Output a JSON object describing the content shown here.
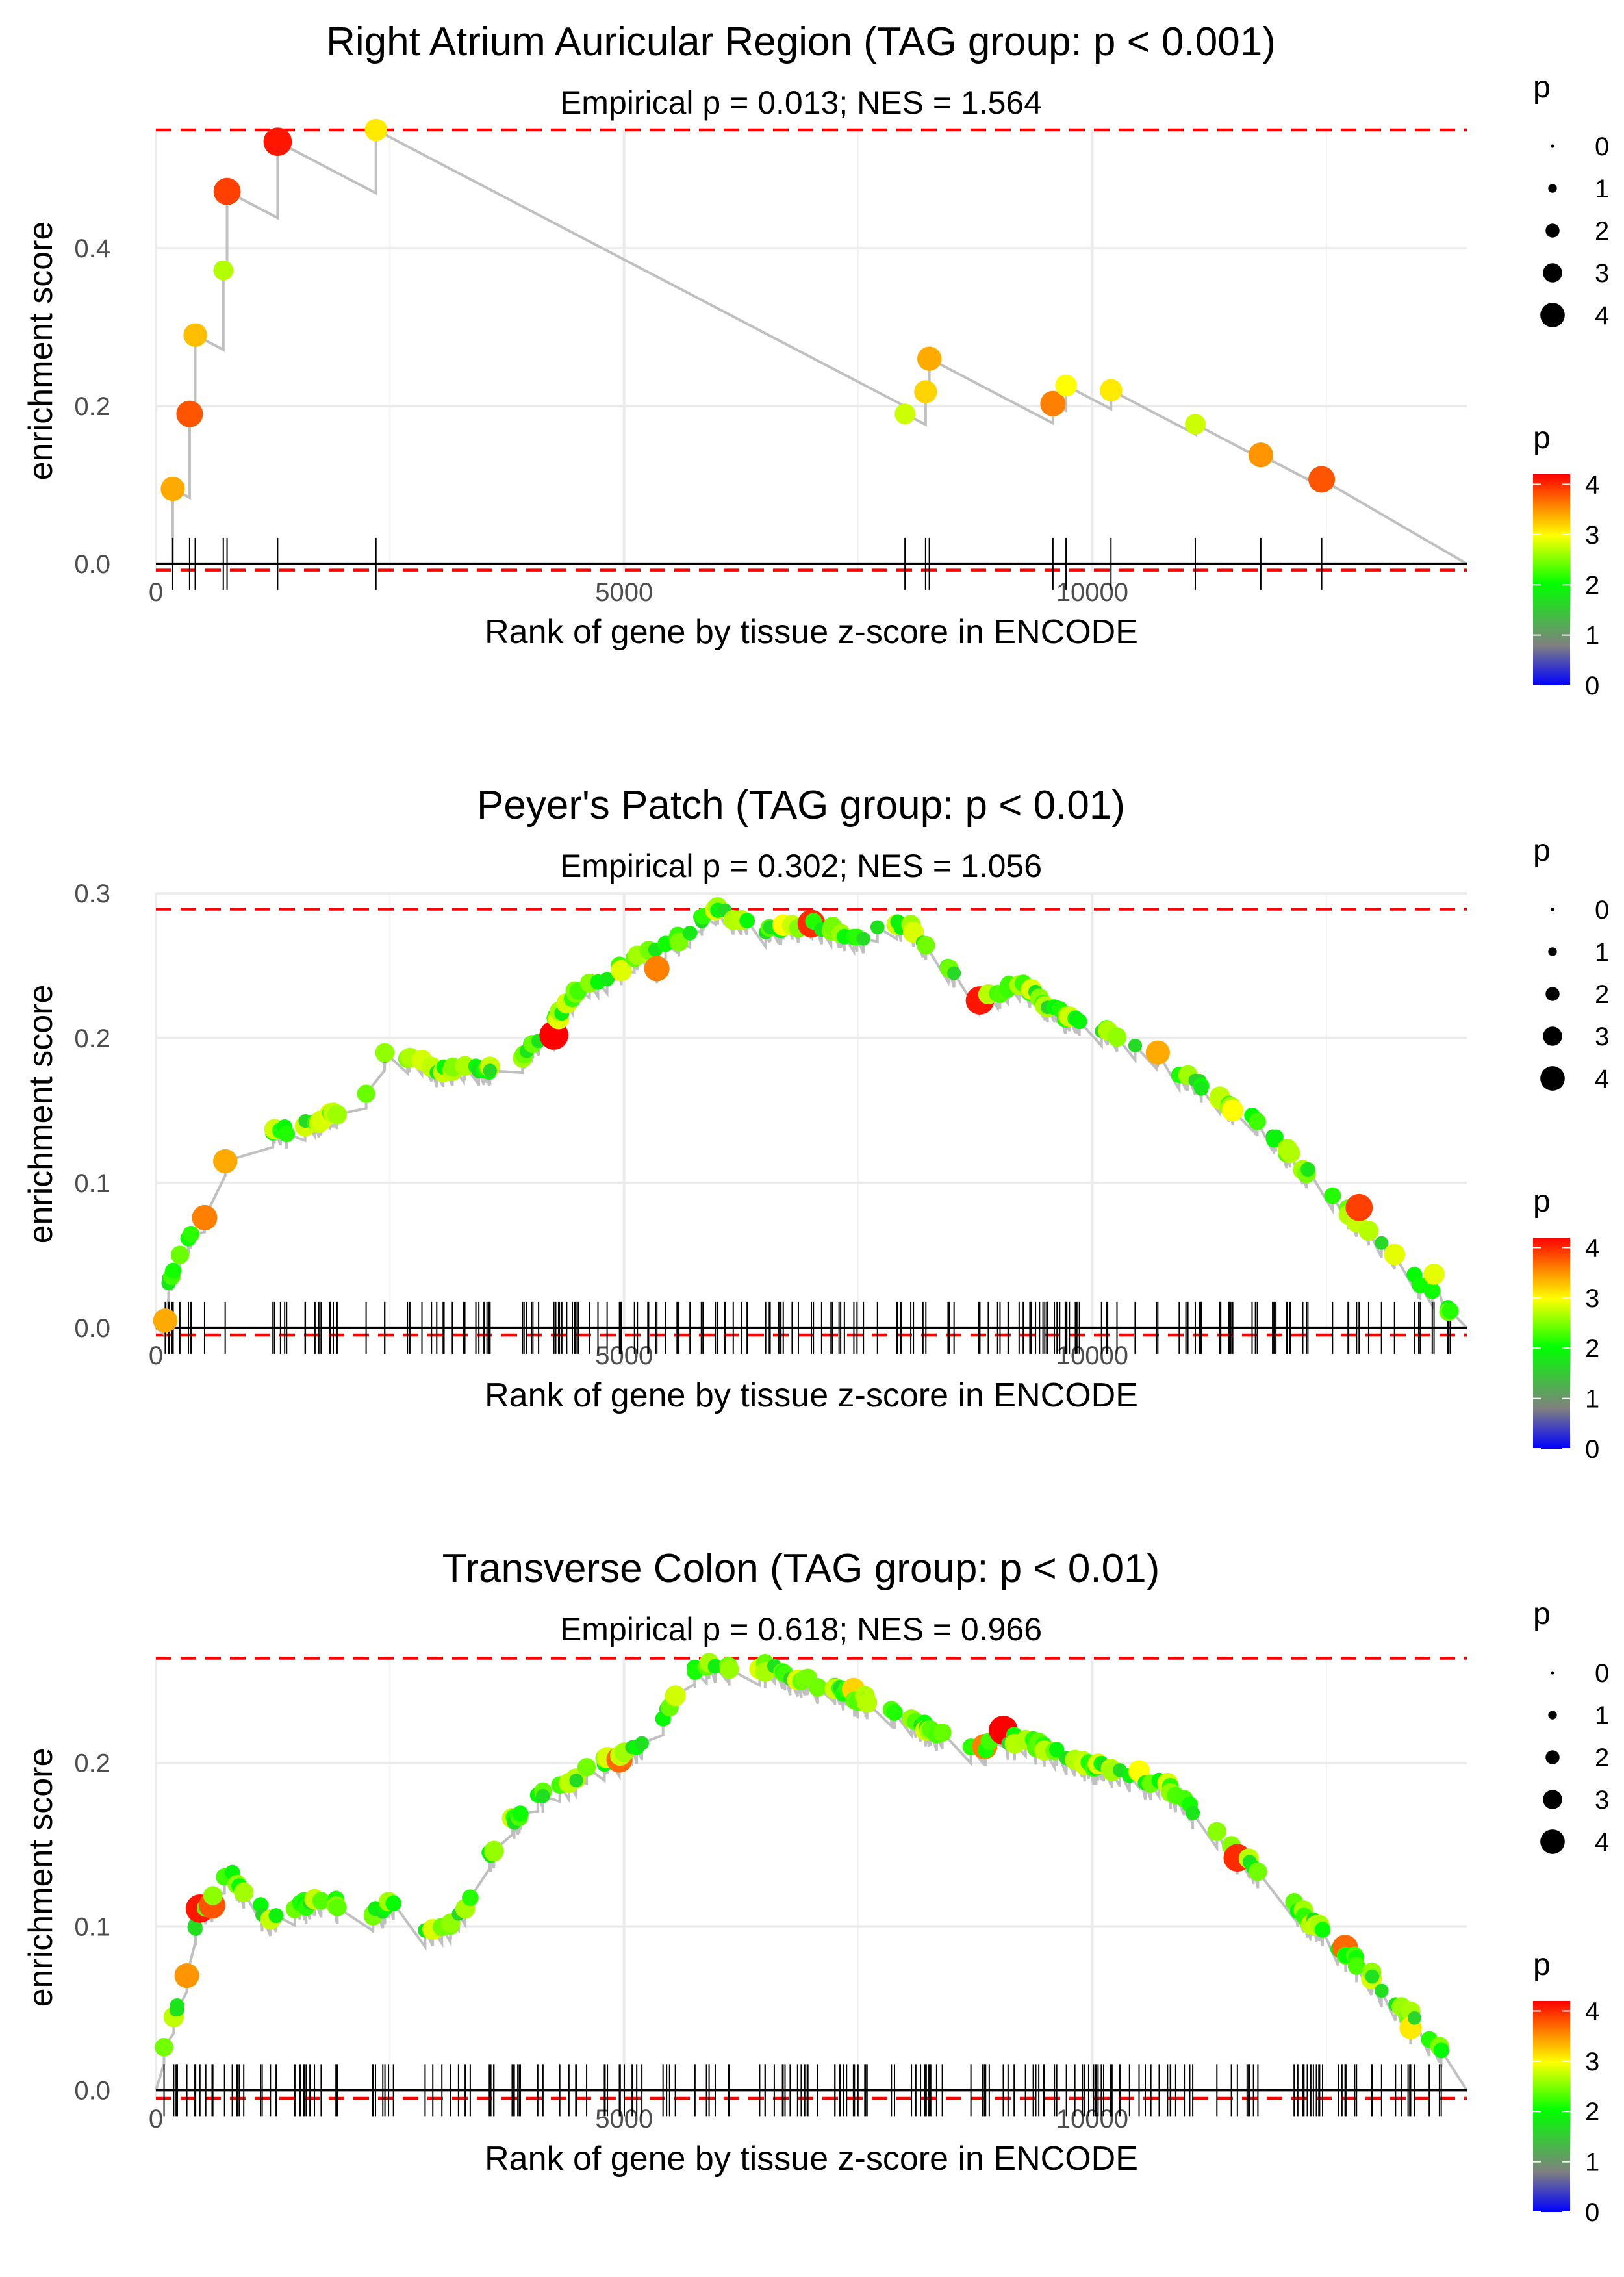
{
  "chart_data": [
    {
      "type": "line",
      "title": "Right Atrium Auricular Region (TAG group: p < 0.001)",
      "subtitle": "Empirical p = 0.013; NES = 1.564",
      "xlabel": "Rank of gene by tissue z-score in ENCODE",
      "ylabel": "enrichment score",
      "xlim": [
        0,
        14000
      ],
      "ylim": [
        -0.01,
        0.55
      ],
      "xticks": [
        0,
        5000,
        10000
      ],
      "xtick_labels": [
        "0",
        "5000",
        "10000"
      ],
      "yticks": [
        0,
        0.2,
        0.4
      ],
      "ytick_labels": [
        "0.0",
        "0.2",
        "0.4"
      ],
      "max_es": 0.55,
      "min_es": -0.008,
      "total_genes": 14000,
      "hits": [
        {
          "x": 180,
          "y": 0.095,
          "p": 3.4
        },
        {
          "x": 360,
          "y": 0.19,
          "p": 3.8
        },
        {
          "x": 420,
          "y": 0.29,
          "p": 3.3
        },
        {
          "x": 720,
          "y": 0.372,
          "p": 2.7
        },
        {
          "x": 760,
          "y": 0.472,
          "p": 3.9
        },
        {
          "x": 1300,
          "y": 0.535,
          "p": 4.1
        },
        {
          "x": 2350,
          "y": 0.55,
          "p": 3.1
        },
        {
          "x": 8000,
          "y": 0.19,
          "p": 2.8
        },
        {
          "x": 8220,
          "y": 0.218,
          "p": 3.2
        },
        {
          "x": 8260,
          "y": 0.26,
          "p": 3.4
        },
        {
          "x": 9580,
          "y": 0.203,
          "p": 3.6
        },
        {
          "x": 9720,
          "y": 0.226,
          "p": 3.0
        },
        {
          "x": 10200,
          "y": 0.22,
          "p": 3.1
        },
        {
          "x": 11100,
          "y": 0.177,
          "p": 2.8
        },
        {
          "x": 11800,
          "y": 0.138,
          "p": 3.5
        },
        {
          "x": 12450,
          "y": 0.107,
          "p": 3.8
        }
      ],
      "size_legend": {
        "title": "p",
        "values": [
          "0",
          "1",
          "2",
          "3",
          "4"
        ]
      },
      "color_legend": {
        "title": "p",
        "ticks": [
          "0",
          "1",
          "2",
          "3",
          "4"
        ],
        "colors": [
          "#0000ff",
          "#808080",
          "#00ff00",
          "#ffff00",
          "#ff0000"
        ]
      }
    },
    {
      "type": "line",
      "title": "Peyer's Patch (TAG group: p < 0.01)",
      "subtitle": "Empirical p = 0.302; NES = 1.056",
      "xlabel": "Rank of gene by tissue z-score in ENCODE",
      "ylabel": "enrichment score",
      "xlim": [
        0,
        14000
      ],
      "ylim": [
        -0.005,
        0.3
      ],
      "xticks": [
        0,
        5000,
        10000
      ],
      "xtick_labels": [
        "0",
        "5000",
        "10000"
      ],
      "yticks": [
        0,
        0.1,
        0.2,
        0.3
      ],
      "ytick_labels": [
        "0.0",
        "0.1",
        "0.2",
        "0.3"
      ],
      "max_es": 0.289,
      "min_es": -0.005,
      "total_genes": 14000,
      "anchors": [
        [
          0,
          0.005
        ],
        [
          150,
          0.035
        ],
        [
          450,
          0.075
        ],
        [
          700,
          0.115
        ],
        [
          1000,
          0.13
        ],
        [
          1600,
          0.14
        ],
        [
          2200,
          0.155
        ],
        [
          2500,
          0.195
        ],
        [
          3000,
          0.178
        ],
        [
          3800,
          0.18
        ],
        [
          4100,
          0.2
        ],
        [
          4500,
          0.232
        ],
        [
          5000,
          0.25
        ],
        [
          5500,
          0.265
        ],
        [
          6000,
          0.289
        ],
        [
          6500,
          0.275
        ],
        [
          7000,
          0.28
        ],
        [
          7500,
          0.27
        ],
        [
          8000,
          0.28
        ],
        [
          8800,
          0.226
        ],
        [
          9200,
          0.238
        ],
        [
          9700,
          0.215
        ],
        [
          10300,
          0.2
        ],
        [
          11000,
          0.175
        ],
        [
          11800,
          0.14
        ],
        [
          12500,
          0.095
        ],
        [
          13200,
          0.05
        ],
        [
          14000,
          0.0
        ]
      ],
      "hits": 190,
      "highlight": [
        {
          "x": 100,
          "y": 0.005,
          "p": 3.4
        },
        {
          "x": 520,
          "y": 0.076,
          "p": 3.6
        },
        {
          "x": 740,
          "y": 0.115,
          "p": 3.4
        },
        {
          "x": 4250,
          "y": 0.202,
          "p": 4.2
        },
        {
          "x": 5350,
          "y": 0.248,
          "p": 3.6
        },
        {
          "x": 6700,
          "y": 0.278,
          "p": 3.0
        },
        {
          "x": 7000,
          "y": 0.279,
          "p": 4.0
        },
        {
          "x": 8800,
          "y": 0.226,
          "p": 4.1
        },
        {
          "x": 10700,
          "y": 0.19,
          "p": 3.4
        },
        {
          "x": 11500,
          "y": 0.15,
          "p": 3.0
        },
        {
          "x": 12850,
          "y": 0.083,
          "p": 3.9
        },
        {
          "x": 13650,
          "y": 0.037,
          "p": 2.9
        }
      ],
      "size_legend": {
        "title": "p",
        "values": [
          "0",
          "1",
          "2",
          "3",
          "4"
        ]
      },
      "color_legend": {
        "title": "p",
        "ticks": [
          "0",
          "1",
          "2",
          "3",
          "4"
        ],
        "colors": [
          "#0000ff",
          "#808080",
          "#00ff00",
          "#ffff00",
          "#ff0000"
        ]
      }
    },
    {
      "type": "line",
      "title": "Transverse Colon (TAG group: p < 0.01)",
      "subtitle": "Empirical p = 0.618; NES = 0.966",
      "xlabel": "Rank of gene by tissue z-score in ENCODE",
      "ylabel": "enrichment score",
      "xlim": [
        0,
        14000
      ],
      "ylim": [
        -0.005,
        0.265
      ],
      "xticks": [
        0,
        5000,
        10000
      ],
      "xtick_labels": [
        "0",
        "5000",
        "10000"
      ],
      "yticks": [
        0,
        0.1,
        0.2
      ],
      "ytick_labels": [
        "0.0",
        "0.1",
        "0.2"
      ],
      "max_es": 0.264,
      "min_es": -0.005,
      "total_genes": 14000,
      "anchors": [
        [
          0,
          0.01
        ],
        [
          200,
          0.045
        ],
        [
          450,
          0.108
        ],
        [
          800,
          0.133
        ],
        [
          1200,
          0.105
        ],
        [
          1800,
          0.118
        ],
        [
          2200,
          0.105
        ],
        [
          2500,
          0.113
        ],
        [
          3000,
          0.095
        ],
        [
          3300,
          0.11
        ],
        [
          3700,
          0.16
        ],
        [
          4200,
          0.185
        ],
        [
          5000,
          0.205
        ],
        [
          5300,
          0.215
        ],
        [
          5700,
          0.255
        ],
        [
          6000,
          0.26
        ],
        [
          6400,
          0.26
        ],
        [
          7300,
          0.245
        ],
        [
          8000,
          0.228
        ],
        [
          8700,
          0.208
        ],
        [
          9200,
          0.215
        ],
        [
          10000,
          0.2
        ],
        [
          10800,
          0.185
        ],
        [
          11500,
          0.15
        ],
        [
          12000,
          0.12
        ],
        [
          12800,
          0.08
        ],
        [
          13500,
          0.04
        ],
        [
          14000,
          0.002
        ]
      ],
      "hits": 200,
      "highlight": [
        {
          "x": 330,
          "y": 0.07,
          "p": 3.5
        },
        {
          "x": 470,
          "y": 0.111,
          "p": 4.1
        },
        {
          "x": 600,
          "y": 0.113,
          "p": 3.8
        },
        {
          "x": 4950,
          "y": 0.202,
          "p": 3.7
        },
        {
          "x": 7450,
          "y": 0.245,
          "p": 3.2
        },
        {
          "x": 8850,
          "y": 0.21,
          "p": 3.6
        },
        {
          "x": 9050,
          "y": 0.22,
          "p": 4.2
        },
        {
          "x": 10500,
          "y": 0.195,
          "p": 3.0
        },
        {
          "x": 11550,
          "y": 0.142,
          "p": 4.0
        },
        {
          "x": 12700,
          "y": 0.087,
          "p": 3.7
        },
        {
          "x": 13400,
          "y": 0.038,
          "p": 3.1
        }
      ],
      "size_legend": {
        "title": "p",
        "values": [
          "0",
          "1",
          "2",
          "3",
          "4"
        ]
      },
      "color_legend": {
        "title": "p",
        "ticks": [
          "0",
          "1",
          "2",
          "3",
          "4"
        ],
        "colors": [
          "#0000ff",
          "#808080",
          "#00ff00",
          "#ffff00",
          "#ff0000"
        ]
      }
    }
  ]
}
